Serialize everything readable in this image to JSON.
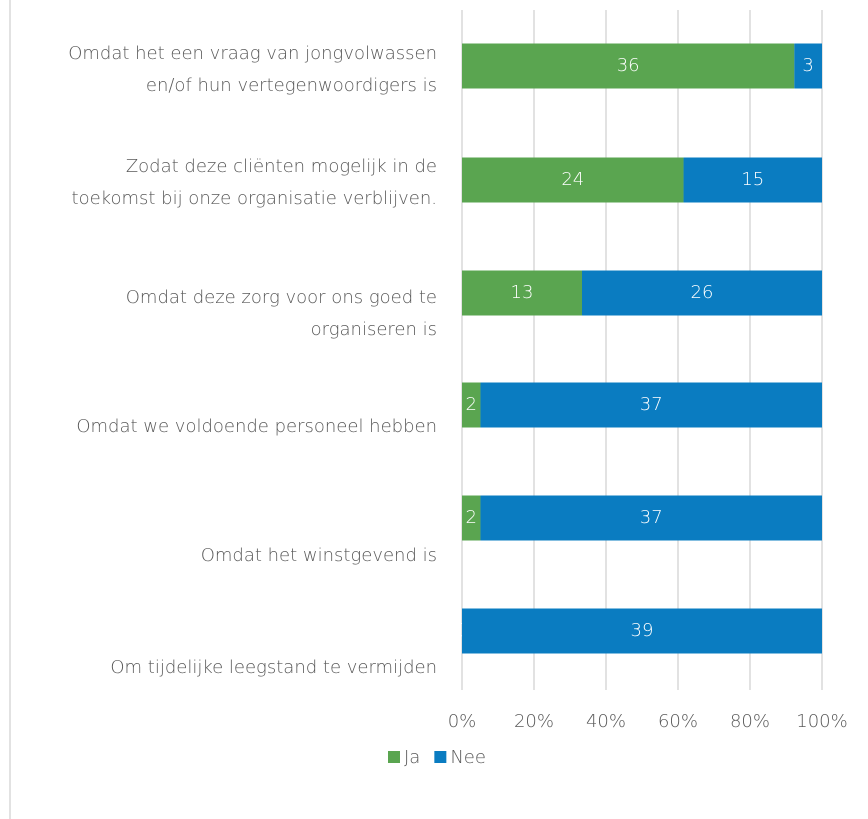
{
  "chart_data": {
    "type": "stacked_percent_barh",
    "categories": [
      "Omdat het een vraag van jongvolwassen en/of hun vertegenwoordigers is",
      "Zodat deze cliënten mogelijk in de toekomst bij onze organisatie verblijven.",
      "Omdat deze zorg voor ons goed te organiseren is",
      "Omdat we voldoende personeel hebben",
      "Omdat het winstgevend is",
      "Om tijdelijke leegstand te vermijden"
    ],
    "series": [
      {
        "name": "Ja",
        "color": "#5aa550",
        "values": [
          36,
          24,
          13,
          2,
          2,
          0
        ]
      },
      {
        "name": "Nee",
        "color": "#0a7cc1",
        "values": [
          3,
          15,
          26,
          37,
          37,
          39
        ]
      }
    ],
    "xlim": [
      0,
      100
    ],
    "xticks": [
      {
        "value": 0,
        "label": "0%"
      },
      {
        "value": 20,
        "label": "20%"
      },
      {
        "value": 40,
        "label": "40%"
      },
      {
        "value": 60,
        "label": "60%"
      },
      {
        "value": 80,
        "label": "80%"
      },
      {
        "value": 100,
        "label": "100%"
      }
    ],
    "grid": true,
    "legend": "bottom"
  }
}
